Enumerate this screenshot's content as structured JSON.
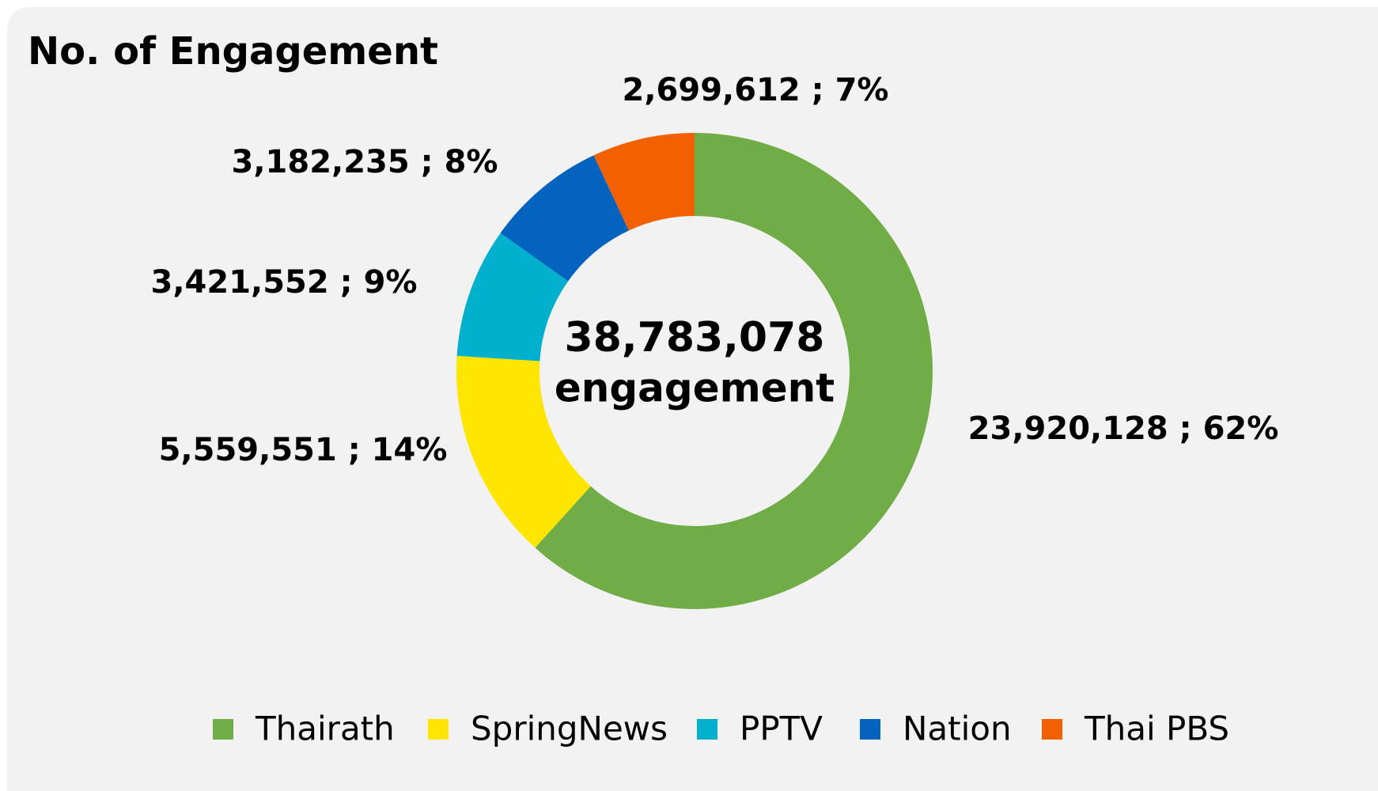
{
  "chart_data": {
    "type": "donut",
    "title": "No. of Engagement",
    "categories": [
      "Thairath",
      "SpringNews",
      "PPTV",
      "Nation",
      "Thai PBS"
    ],
    "values": [
      23920128,
      5559551,
      3421552,
      3182235,
      2699612
    ],
    "value_labels": [
      "23,920,128 ; 62%",
      "5,559,551 ; 14%",
      "3,421,552 ; 9%",
      "3,182,235 ; 8%",
      "2,699,612 ; 7%"
    ],
    "colors": [
      "#70ad47",
      "#ffe600",
      "#00b0cc",
      "#0563c0",
      "#f26000"
    ],
    "annotations": [
      "38,783,078",
      "engagement"
    ],
    "legend": "bottom"
  }
}
